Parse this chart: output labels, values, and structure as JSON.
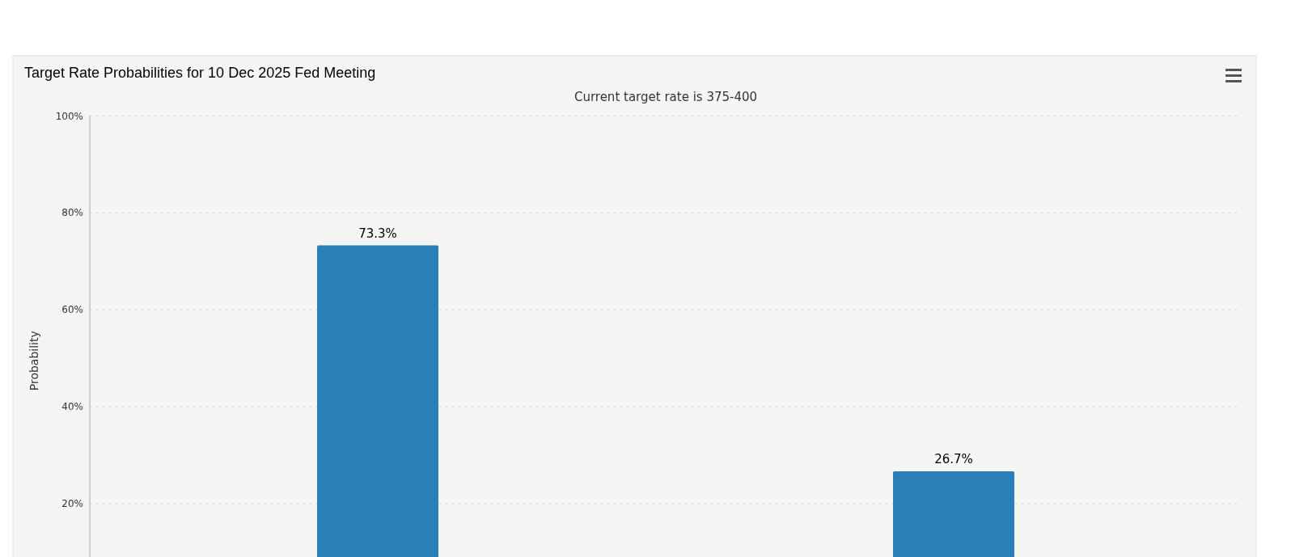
{
  "chart_data": {
    "type": "bar",
    "title": "Target Rate Probabilities for 10 Dec 2025 Fed Meeting",
    "subtitle": "Current target rate is 375-400",
    "ylabel": "Probability",
    "categories": [
      null,
      null
    ],
    "values": [
      73.3,
      26.7
    ],
    "value_labels": [
      "73.3%",
      "26.7%"
    ],
    "color": "#2a7fb8",
    "ylim": [
      0,
      100
    ],
    "yticks": [
      {
        "value": 20,
        "label": "20%"
      },
      {
        "value": 40,
        "label": "40%"
      },
      {
        "value": 60,
        "label": "60%"
      },
      {
        "value": 80,
        "label": "80%"
      },
      {
        "value": 100,
        "label": "100%"
      }
    ],
    "grid": "y"
  }
}
